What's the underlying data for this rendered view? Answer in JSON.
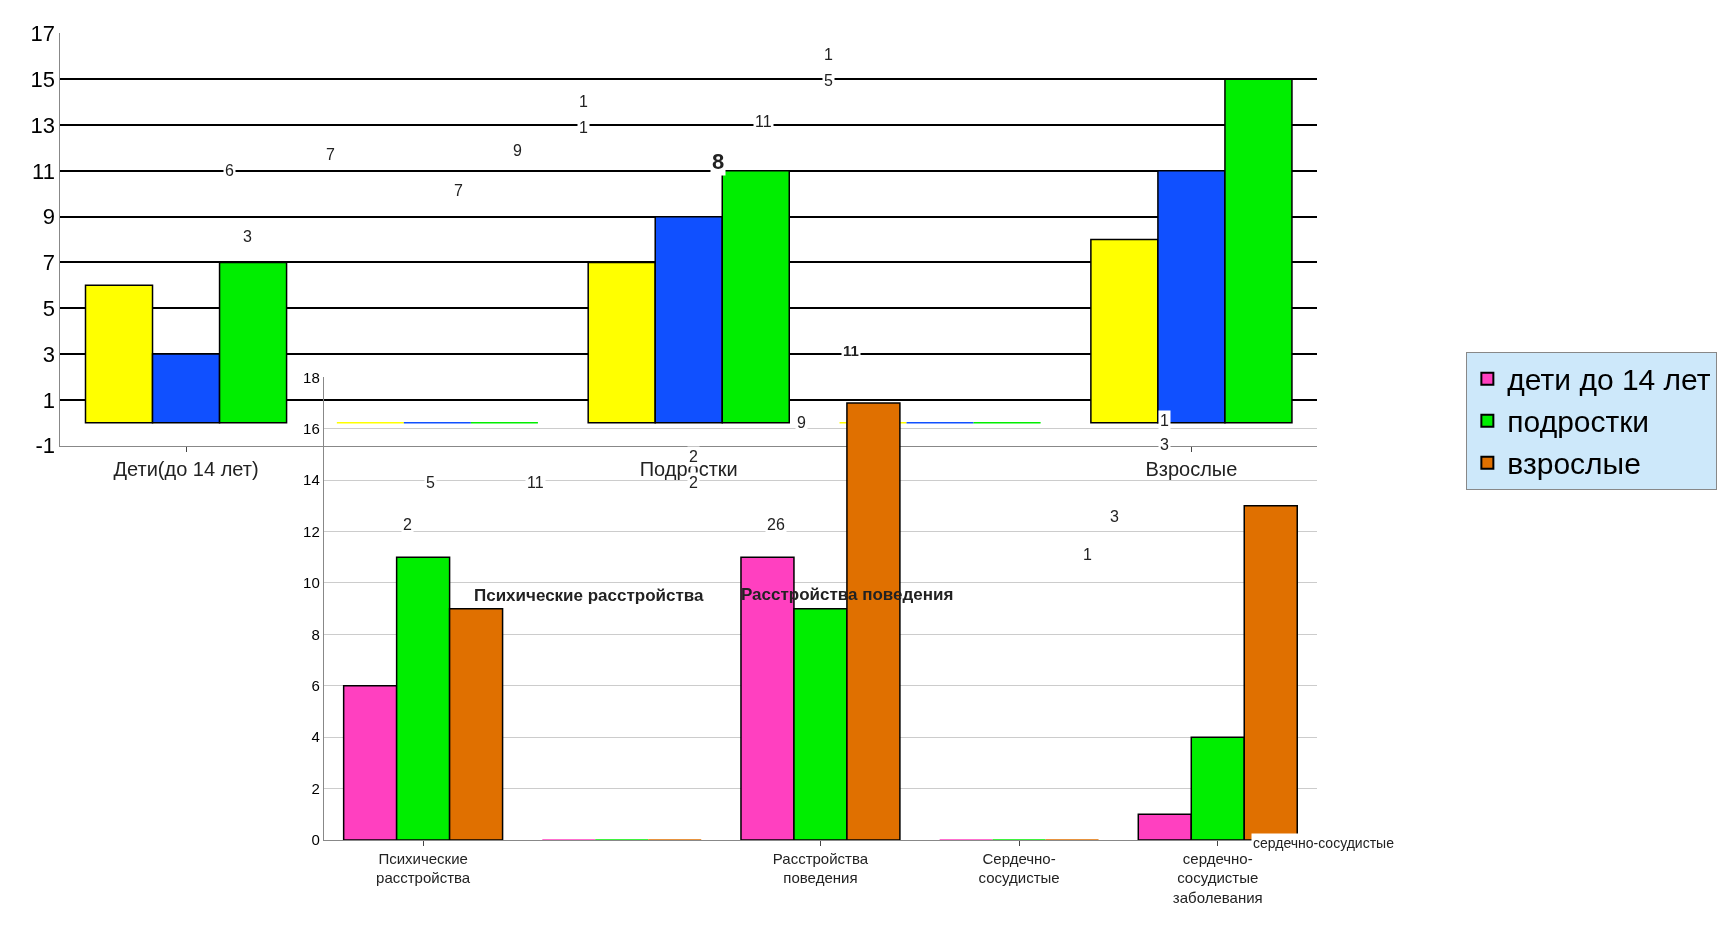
{
  "chart_data": [
    {
      "type": "bar",
      "categories": [
        "Дети(до 14 лет)",
        null,
        "Подростки",
        null,
        "Взрослые"
      ],
      "series": [
        {
          "color": "#ffff00",
          "values": [
            6,
            0,
            7,
            0,
            8
          ]
        },
        {
          "color": "#1050ff",
          "values": [
            3,
            0,
            9,
            0,
            11
          ]
        },
        {
          "color": "#00ee00",
          "values": [
            7,
            0,
            11,
            0,
            15
          ]
        }
      ],
      "ylim": [
        -1,
        17
      ],
      "yticks": [
        -1,
        1,
        3,
        5,
        7,
        9,
        11,
        13,
        15,
        17
      ],
      "grid": "y",
      "legend": false,
      "annotations": [
        "6",
        "7",
        "9",
        "7",
        "3",
        "1",
        "1",
        "11",
        "8",
        "1",
        "5",
        "9",
        "1",
        "3",
        "2",
        "2",
        "5",
        "11"
      ]
    },
    {
      "type": "bar",
      "categories": [
        "Психические расстройства",
        null,
        "Расстройства поведения",
        "Сердечно-сосудистые",
        "сердечно-сосудистые заболевания"
      ],
      "series": [
        {
          "name": "дети до 14 лет",
          "color": "#ff40c0",
          "values": [
            6,
            0,
            11,
            0,
            1
          ]
        },
        {
          "name": "подростки",
          "color": "#00ee00",
          "values": [
            11,
            0,
            9,
            0,
            4
          ]
        },
        {
          "name": "взрослые",
          "color": "#e07000",
          "values": [
            9,
            0,
            17,
            0,
            13
          ]
        }
      ],
      "ylim": [
        0,
        18
      ],
      "yticks": [
        0,
        2,
        4,
        6,
        8,
        10,
        12,
        14,
        16,
        18
      ],
      "grid": "y",
      "legend": "right",
      "annotations": [
        "11",
        "2",
        "26",
        "3",
        "1",
        "Психические расстройства",
        "Расстройства поведения",
        "сердечно-сосудистые"
      ]
    }
  ]
}
